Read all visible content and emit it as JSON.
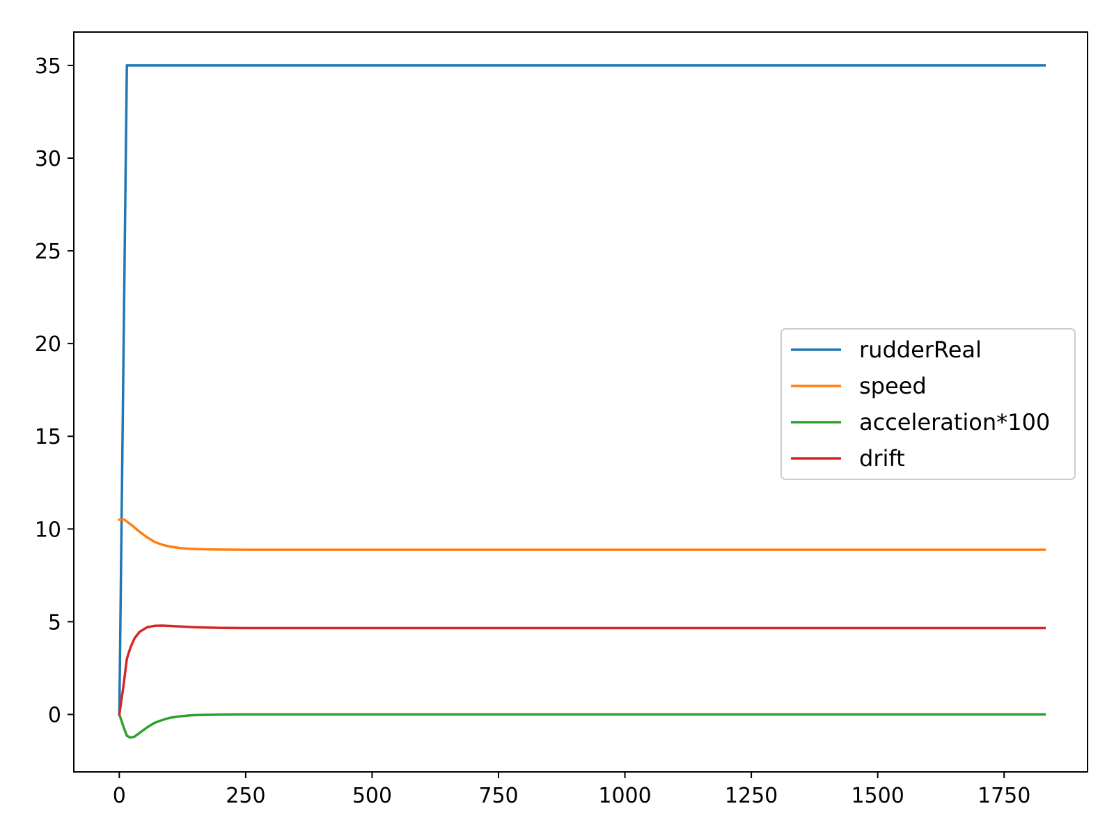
{
  "chart_data": {
    "type": "line",
    "title": "",
    "xlabel": "",
    "ylabel": "",
    "xlim": [
      -90,
      1915
    ],
    "ylim": [
      -3.1,
      36.8
    ],
    "xticks": [
      0,
      250,
      500,
      750,
      1000,
      1250,
      1500,
      1750
    ],
    "yticks": [
      0,
      5,
      10,
      15,
      20,
      25,
      30,
      35
    ],
    "grid": false,
    "legend": {
      "placement": "center-right"
    },
    "series": [
      {
        "name": "rudderReal",
        "color": "#1f77b4",
        "x": [
          0,
          15,
          1830
        ],
        "y": [
          0,
          35,
          35
        ]
      },
      {
        "name": "speed",
        "color": "#ff7f0e",
        "x": [
          0,
          10,
          25,
          40,
          55,
          70,
          85,
          100,
          120,
          140,
          160,
          180,
          200,
          250,
          300,
          400,
          600,
          1000,
          1500,
          1830
        ],
        "y": [
          10.5,
          10.5,
          10.2,
          9.85,
          9.55,
          9.3,
          9.15,
          9.05,
          8.97,
          8.93,
          8.91,
          8.9,
          8.89,
          8.88,
          8.88,
          8.88,
          8.88,
          8.88,
          8.88,
          8.88
        ]
      },
      {
        "name": "acceleration*100",
        "color": "#2ca02c",
        "x": [
          0,
          10,
          15,
          22,
          30,
          40,
          55,
          70,
          85,
          100,
          120,
          140,
          160,
          200,
          250,
          300,
          400,
          600,
          1000,
          1500,
          1830
        ],
        "y": [
          0,
          -0.8,
          -1.15,
          -1.25,
          -1.2,
          -1.0,
          -0.7,
          -0.45,
          -0.3,
          -0.18,
          -0.1,
          -0.05,
          -0.03,
          -0.01,
          0,
          0,
          0,
          0,
          0,
          0,
          0
        ]
      },
      {
        "name": "drift",
        "color": "#d62728",
        "x": [
          0,
          8,
          15,
          22,
          30,
          40,
          55,
          70,
          85,
          100,
          120,
          150,
          200,
          250,
          300,
          400,
          600,
          1000,
          1500,
          1830
        ],
        "y": [
          0,
          1.5,
          3.0,
          3.6,
          4.1,
          4.45,
          4.7,
          4.78,
          4.79,
          4.77,
          4.74,
          4.7,
          4.67,
          4.66,
          4.66,
          4.66,
          4.66,
          4.66,
          4.66,
          4.66
        ]
      }
    ]
  }
}
